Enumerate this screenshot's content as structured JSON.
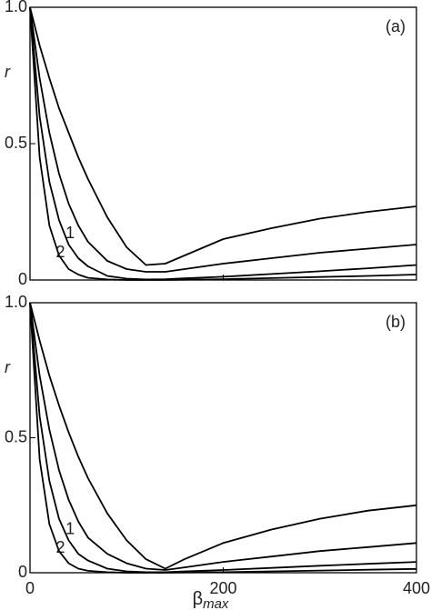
{
  "chart_data": [
    {
      "type": "line",
      "title": "(a)",
      "ylabel": "r",
      "xtick_labels": false,
      "x": [
        0,
        10,
        20,
        30,
        40,
        50,
        60,
        80,
        100,
        120,
        140,
        160,
        200,
        250,
        300,
        350,
        400
      ],
      "xlim": [
        0,
        400
      ],
      "xticks": [
        0,
        200,
        400
      ],
      "ylim": [
        0,
        1
      ],
      "yticks": [
        0,
        0.5,
        {
          "value": 1,
          "label": "1.0"
        }
      ],
      "series": [
        {
          "color": "#000000",
          "values": [
            1,
            0.86,
            0.74,
            0.63,
            0.54,
            0.45,
            0.37,
            0.23,
            0.12,
            0.055,
            0.06,
            0.09,
            0.15,
            0.19,
            0.225,
            0.25,
            0.27
          ]
        },
        {
          "name": "1",
          "color": "#000000",
          "values": [
            1,
            0.74,
            0.54,
            0.39,
            0.28,
            0.2,
            0.14,
            0.07,
            0.04,
            0.03,
            0.03,
            0.04,
            0.06,
            0.08,
            0.1,
            0.115,
            0.13
          ]
        },
        {
          "name": "2",
          "color": "#000000",
          "values": [
            1,
            0.6,
            0.36,
            0.22,
            0.13,
            0.08,
            0.05,
            0.015,
            0.005,
            0.002,
            0.003,
            0.006,
            0.012,
            0.022,
            0.032,
            0.043,
            0.055
          ]
        },
        {
          "color": "#000000",
          "values": [
            1,
            0.45,
            0.2,
            0.09,
            0.04,
            0.02,
            0.008,
            0.002,
            0,
            0,
            0,
            0.001,
            0.003,
            0.007,
            0.011,
            0.015,
            0.02
          ]
        }
      ]
    },
    {
      "type": "line",
      "title": "(b)",
      "ylabel": "r",
      "xtick_labels": true,
      "xlabel": "β",
      "xlabel_subscript": "max",
      "x": [
        0,
        10,
        20,
        30,
        40,
        50,
        60,
        80,
        100,
        120,
        140,
        160,
        200,
        250,
        300,
        350,
        400
      ],
      "xlim": [
        0,
        400
      ],
      "xticks": [
        0,
        200,
        400
      ],
      "ylim": [
        0,
        1
      ],
      "yticks": [
        0,
        0.5,
        {
          "value": 1,
          "label": "1.0"
        }
      ],
      "series": [
        {
          "color": "#000000",
          "values": [
            1,
            0.86,
            0.73,
            0.62,
            0.52,
            0.43,
            0.35,
            0.22,
            0.12,
            0.05,
            0.015,
            0.05,
            0.11,
            0.16,
            0.2,
            0.23,
            0.25
          ]
        },
        {
          "name": "1",
          "color": "#000000",
          "values": [
            1,
            0.73,
            0.53,
            0.38,
            0.27,
            0.19,
            0.13,
            0.07,
            0.035,
            0.015,
            0.01,
            0.02,
            0.04,
            0.06,
            0.08,
            0.095,
            0.11
          ]
        },
        {
          "name": "2",
          "color": "#000000",
          "values": [
            1,
            0.58,
            0.34,
            0.2,
            0.12,
            0.07,
            0.045,
            0.015,
            0.005,
            0.002,
            0.002,
            0.005,
            0.01,
            0.018,
            0.026,
            0.033,
            0.04
          ]
        },
        {
          "color": "#000000",
          "values": [
            1,
            0.42,
            0.18,
            0.08,
            0.035,
            0.015,
            0.007,
            0.002,
            0,
            0,
            0,
            0.001,
            0.002,
            0.005,
            0.008,
            0.011,
            0.014
          ]
        }
      ]
    }
  ]
}
